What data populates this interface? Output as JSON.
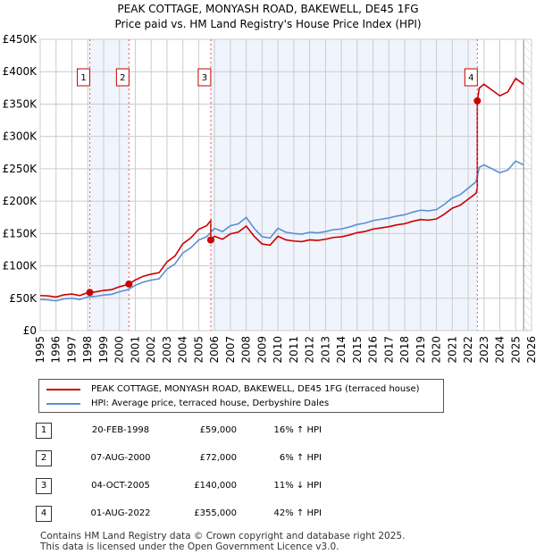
{
  "title": "PEAK COTTAGE, MONYASH ROAD, BAKEWELL, DE45 1FG",
  "subtitle": "Price paid vs. HM Land Registry's House Price Index (HPI)",
  "chart_data": {
    "type": "line",
    "ylim": [
      0,
      450000
    ],
    "xlim": [
      1995,
      2026
    ],
    "yticks": [
      "£0",
      "£50K",
      "£100K",
      "£150K",
      "£200K",
      "£250K",
      "£300K",
      "£350K",
      "£400K",
      "£450K"
    ],
    "xticks": [
      "1995",
      "1996",
      "1997",
      "1998",
      "1999",
      "2000",
      "2001",
      "2002",
      "2003",
      "2004",
      "2005",
      "2006",
      "2007",
      "2008",
      "2009",
      "2010",
      "2011",
      "2012",
      "2013",
      "2014",
      "2015",
      "2016",
      "2017",
      "2018",
      "2019",
      "2020",
      "2021",
      "2022",
      "2023",
      "2024",
      "2025",
      "2026"
    ],
    "hpi": {
      "name": "HPI: Average price, terraced house, Derbyshire Dales",
      "color": "#5b8fd4",
      "x": [
        1995,
        1995.5,
        1996,
        1996.5,
        1997,
        1997.5,
        1998,
        1998.5,
        1999,
        1999.5,
        2000,
        2000.5,
        2001,
        2001.5,
        2002,
        2002.5,
        2003,
        2003.5,
        2004,
        2004.5,
        2005,
        2005.5,
        2006,
        2006.5,
        2007,
        2007.5,
        2008,
        2008.5,
        2009,
        2009.5,
        2010,
        2010.5,
        2011,
        2011.5,
        2012,
        2012.5,
        2013,
        2013.5,
        2014,
        2014.5,
        2015,
        2015.5,
        2016,
        2016.5,
        2017,
        2017.5,
        2018,
        2018.5,
        2019,
        2019.5,
        2020,
        2020.5,
        2021,
        2021.5,
        2022,
        2022.5,
        2022.7,
        2023,
        2023.5,
        2024,
        2024.5,
        2025,
        2025.5
      ],
      "y": [
        48000,
        47500,
        46000,
        49000,
        50000,
        48000,
        52000,
        53000,
        55000,
        56000,
        60000,
        63000,
        70000,
        75000,
        78000,
        80000,
        95000,
        103000,
        120000,
        128000,
        140000,
        145000,
        158000,
        153000,
        162000,
        165000,
        175000,
        158000,
        145000,
        143000,
        158000,
        152000,
        150000,
        149000,
        152000,
        151000,
        153000,
        156000,
        157000,
        160000,
        164000,
        166000,
        170000,
        172000,
        174000,
        177000,
        179000,
        183000,
        186000,
        185000,
        187000,
        195000,
        205000,
        210000,
        220000,
        230000,
        252000,
        256000,
        250000,
        244000,
        248000,
        262000,
        256000
      ]
    },
    "property": {
      "name": "PEAK COTTAGE, MONYASH ROAD, BAKEWELL, DE45 1FG (terraced house)",
      "color": "#cc0000"
    },
    "sales": [
      {
        "id": "1",
        "x": 1998.13,
        "date": "20-FEB-1998",
        "price": 59000,
        "price_label": "£59,000",
        "hpi_label": "16% ↑ HPI"
      },
      {
        "id": "2",
        "x": 2000.6,
        "date": "07-AUG-2000",
        "price": 72000,
        "price_label": "£72,000",
        "hpi_label": "6% ↑ HPI"
      },
      {
        "id": "3",
        "x": 2005.76,
        "date": "04-OCT-2005",
        "price": 140000,
        "price_label": "£140,000",
        "hpi_label": "11% ↓ HPI"
      },
      {
        "id": "4",
        "x": 2022.58,
        "date": "01-AUG-2022",
        "price": 355000,
        "price_label": "£355,000",
        "hpi_label": "42% ↑ HPI"
      }
    ]
  },
  "legend": {
    "property": "PEAK COTTAGE, MONYASH ROAD, BAKEWELL, DE45 1FG (terraced house)",
    "hpi": "HPI: Average price, terraced house, Derbyshire Dales"
  },
  "footer": {
    "line1": "Contains HM Land Registry data © Crown copyright and database right 2025.",
    "line2": "This data is licensed under the Open Government Licence v3.0."
  }
}
